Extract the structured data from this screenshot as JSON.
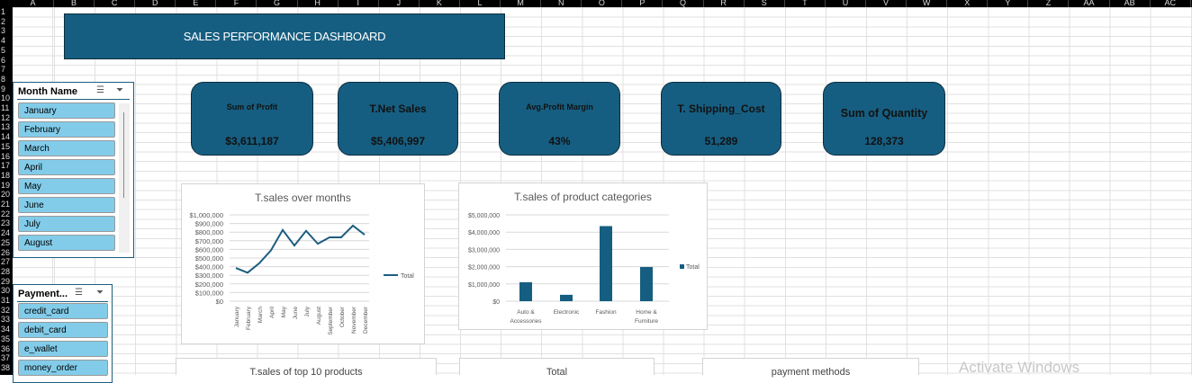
{
  "columns": [
    "A",
    "B",
    "C",
    "D",
    "E",
    "F",
    "G",
    "H",
    "I",
    "J",
    "K",
    "L",
    "M",
    "N",
    "O",
    "P",
    "Q",
    "R",
    "S",
    "T",
    "U",
    "V",
    "W",
    "X",
    "Y",
    "Z",
    "AA",
    "AB",
    "AC"
  ],
  "rows": [
    "1",
    "2",
    "3",
    "4",
    "5",
    "6",
    "7",
    "8",
    "9",
    "10",
    "11",
    "12",
    "13",
    "14",
    "15",
    "16",
    "17",
    "18",
    "19",
    "20",
    "21",
    "22",
    "23",
    "24",
    "25",
    "26",
    "27",
    "28",
    "29",
    "30",
    "31",
    "32",
    "33",
    "34",
    "35",
    "36",
    "37",
    "38"
  ],
  "dashboard_title": "SALES PERFORMANCE DASHBOARD",
  "kpis": [
    {
      "label": "Sum of Profit",
      "value": "$3,611,187"
    },
    {
      "label": "T.Net Sales",
      "value": "$5,406,997"
    },
    {
      "label": "Avg.Profit Margin",
      "value": "43%"
    },
    {
      "label": "T. Shipping_Cost",
      "value": "51,289"
    },
    {
      "label": "Sum of Quantity",
      "value": "128,373"
    }
  ],
  "slicers": {
    "month": {
      "header": "Month Name",
      "items": [
        "January",
        "February",
        "March",
        "April",
        "May",
        "June",
        "July",
        "August"
      ]
    },
    "payment": {
      "header": "Payment...",
      "items": [
        "credit_card",
        "debit_card",
        "e_wallet",
        "money_order"
      ]
    }
  },
  "chart_data": [
    {
      "type": "line",
      "title": "T.sales over months",
      "categories": [
        "January",
        "February",
        "March",
        "April",
        "May",
        "June",
        "July",
        "August",
        "September",
        "October",
        "November",
        "December"
      ],
      "series": [
        {
          "name": "Total",
          "values": [
            385000,
            330000,
            440000,
            590000,
            825000,
            645000,
            815000,
            665000,
            740000,
            740000,
            875000,
            770000
          ],
          "color": "#1c5e80"
        }
      ],
      "yticks": [
        "$0",
        "$100,000",
        "$200,000",
        "$300,000",
        "$400,000",
        "$500,000",
        "$600,000",
        "$700,000",
        "$800,000",
        "$900,000",
        "$1,000,000"
      ],
      "ylim": [
        0,
        1000000
      ],
      "legend": "right",
      "grid": true
    },
    {
      "type": "bar",
      "title": "T.sales of product categories",
      "categories": [
        "Auto & Accessories",
        "Electronic",
        "Fashion",
        "Home & Furniture"
      ],
      "series": [
        {
          "name": "Total",
          "values": [
            1100000,
            370000,
            4350000,
            1980000
          ],
          "color": "#165e81"
        }
      ],
      "yticks": [
        "$0",
        "$1,000,000",
        "$2,000,000",
        "$3,000,000",
        "$4,000,000",
        "$5,000,000"
      ],
      "ylim": [
        0,
        5000000
      ],
      "legend": "right",
      "grid": true
    }
  ],
  "bottom_charts": [
    "T.sales of top 10 products",
    "Total",
    "payment methods"
  ],
  "activate_windows": "Activate Windows"
}
